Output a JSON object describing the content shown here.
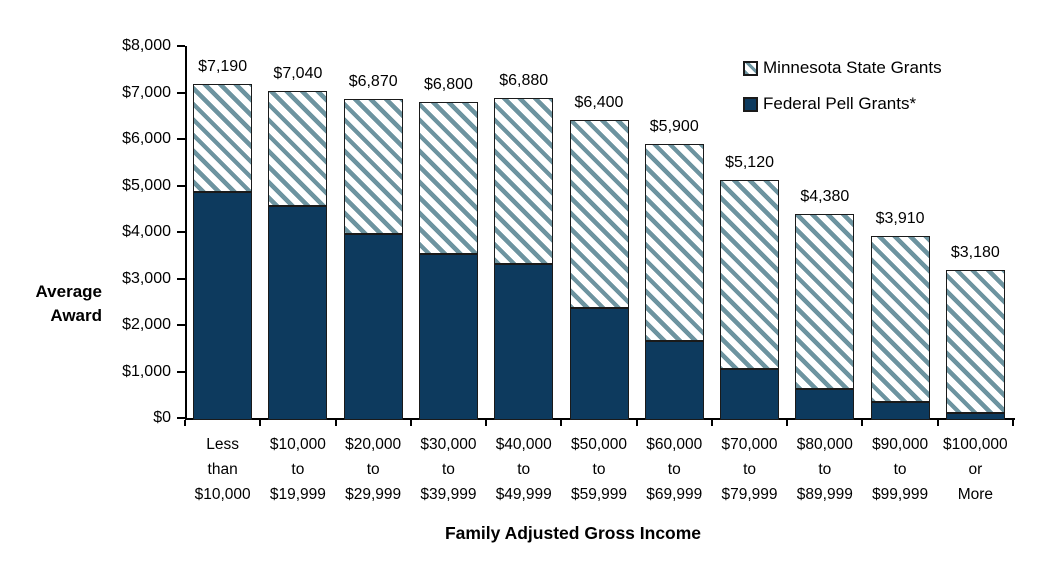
{
  "chart_data": {
    "type": "bar",
    "stacked": true,
    "title": "",
    "xlabel": "Family Adjusted Gross Income",
    "ylabel": "Average Award",
    "ylabel_lines": [
      "Average",
      "Award"
    ],
    "ylim": [
      0,
      8000
    ],
    "grid": false,
    "legend_position": "top-right",
    "y_ticks": [
      {
        "value": 0,
        "label": "$0"
      },
      {
        "value": 1000,
        "label": "$1,000"
      },
      {
        "value": 2000,
        "label": "$2,000"
      },
      {
        "value": 3000,
        "label": "$3,000"
      },
      {
        "value": 4000,
        "label": "$4,000"
      },
      {
        "value": 5000,
        "label": "$5,000"
      },
      {
        "value": 6000,
        "label": "$6,000"
      },
      {
        "value": 7000,
        "label": "$7,000"
      },
      {
        "value": 8000,
        "label": "$8,000"
      }
    ],
    "categories": [
      "Less than $10,000",
      "$10,000 to $19,999",
      "$20,000 to $29,999",
      "$30,000 to $39,999",
      "$40,000 to $49,999",
      "$50,000 to $59,999",
      "$60,000 to $69,999",
      "$70,000 to $79,999",
      "$80,000 to $89,999",
      "$90,000 to $99,999",
      "$100,000 or More"
    ],
    "category_lines": [
      [
        "Less",
        "than",
        "$10,000"
      ],
      [
        "$10,000",
        "to",
        "$19,999"
      ],
      [
        "$20,000",
        "to",
        "$29,999"
      ],
      [
        "$30,000",
        "to",
        "$39,999"
      ],
      [
        "$40,000",
        "to",
        "$49,999"
      ],
      [
        "$50,000",
        "to",
        "$59,999"
      ],
      [
        "$60,000",
        "to",
        "$69,999"
      ],
      [
        "$70,000",
        "to",
        "$79,999"
      ],
      [
        "$80,000",
        "to",
        "$89,999"
      ],
      [
        "$90,000",
        "to",
        "$99,999"
      ],
      [
        "$100,000",
        "or",
        "More"
      ]
    ],
    "series": [
      {
        "name": "Minnesota State Grants",
        "stack_position": "top",
        "fill": "diagonal-hatch",
        "values": [
          2290,
          2440,
          2870,
          3220,
          3520,
          4000,
          4200,
          4020,
          3720,
          3520,
          3040
        ]
      },
      {
        "name": "Federal Pell Grants*",
        "stack_position": "bottom",
        "fill": "solid-navy",
        "values": [
          4900,
          4600,
          4000,
          3580,
          3360,
          2400,
          1700,
          1100,
          660,
          390,
          140
        ]
      }
    ],
    "totals": [
      7190,
      7040,
      6870,
      6800,
      6880,
      6400,
      5900,
      5120,
      4380,
      3910,
      3180
    ],
    "total_labels": [
      "$7,190",
      "$7,040",
      "$6,870",
      "$6,800",
      "$6,880",
      "$6,400",
      "$5,900",
      "$5,120",
      "$4,380",
      "$3,910",
      "$3,180"
    ]
  },
  "colors": {
    "pell_navy": "#0d3a5e",
    "hatch_stripe": "#6d94a0",
    "hatch_background": "#ffffff",
    "bar_border": "#1a1a1a",
    "axis": "#000000",
    "text": "#000000"
  }
}
